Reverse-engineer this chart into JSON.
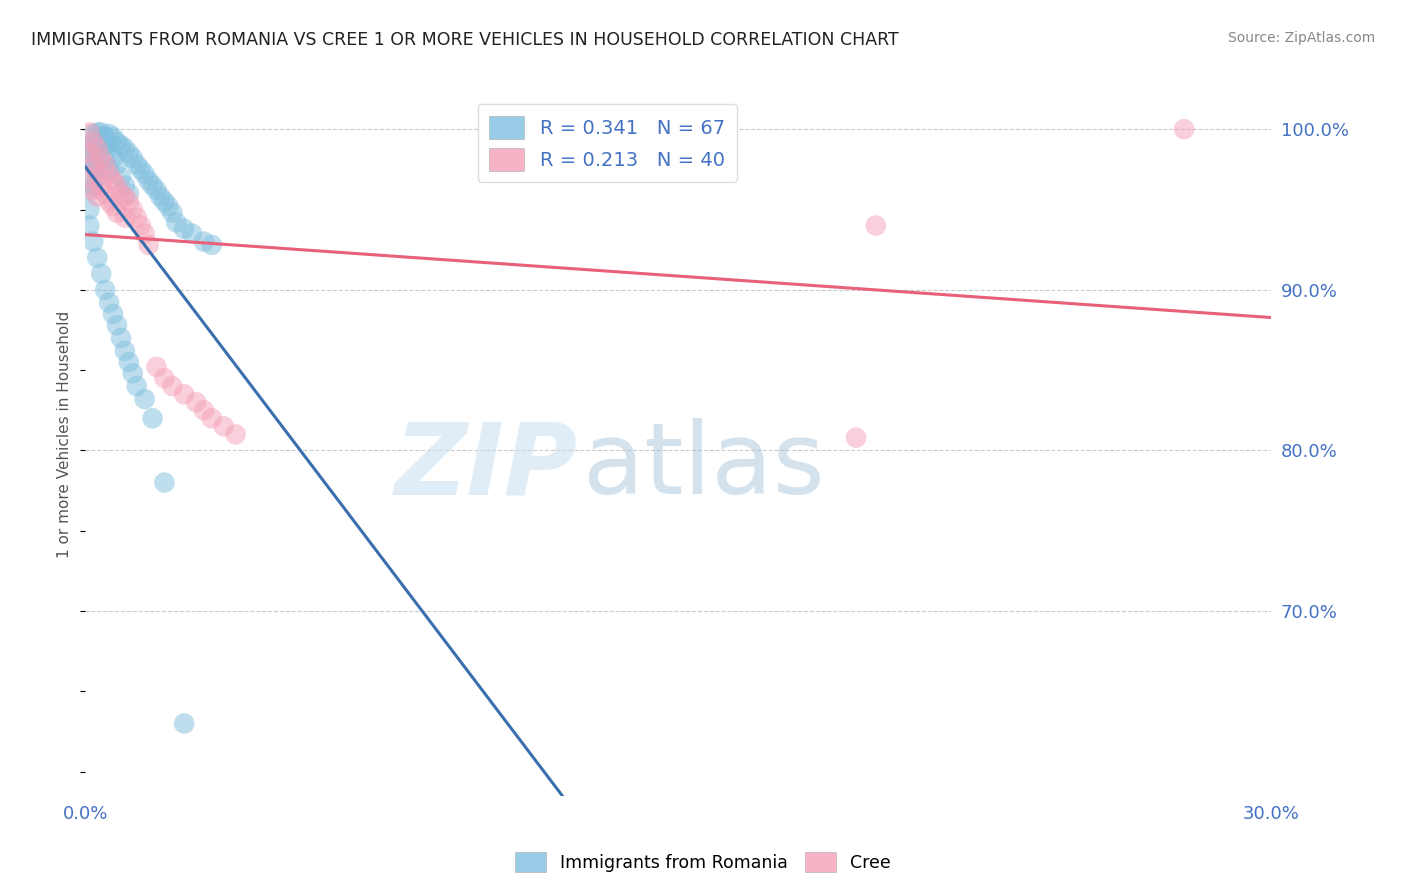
{
  "title": "IMMIGRANTS FROM ROMANIA VS CREE 1 OR MORE VEHICLES IN HOUSEHOLD CORRELATION CHART",
  "source": "Source: ZipAtlas.com",
  "ylabel": "1 or more Vehicles in Household",
  "xmin": 0.0,
  "xmax": 0.3,
  "ymin": 0.585,
  "ymax": 1.035,
  "yticks": [
    0.7,
    0.8,
    0.9,
    1.0
  ],
  "ytick_labels": [
    "70.0%",
    "80.0%",
    "90.0%",
    "100.0%"
  ],
  "blue_R": 0.341,
  "blue_N": 67,
  "pink_R": 0.213,
  "pink_N": 40,
  "blue_color": "#7fbfdf",
  "pink_color": "#f4a0b8",
  "blue_line_color": "#3a6faf",
  "pink_line_color": "#e8607a",
  "legend_blue_label": "Immigrants from Romania",
  "legend_pink_label": "Cree",
  "blue_x": [
    0.001,
    0.001,
    0.001,
    0.001,
    0.001,
    0.002,
    0.002,
    0.002,
    0.002,
    0.002,
    0.003,
    0.003,
    0.003,
    0.003,
    0.004,
    0.004,
    0.004,
    0.004,
    0.005,
    0.005,
    0.005,
    0.006,
    0.006,
    0.006,
    0.007,
    0.007,
    0.008,
    0.008,
    0.009,
    0.009,
    0.01,
    0.01,
    0.011,
    0.011,
    0.012,
    0.013,
    0.014,
    0.015,
    0.016,
    0.017,
    0.018,
    0.019,
    0.02,
    0.021,
    0.022,
    0.023,
    0.025,
    0.027,
    0.03,
    0.032,
    0.001,
    0.002,
    0.003,
    0.004,
    0.005,
    0.006,
    0.007,
    0.008,
    0.009,
    0.01,
    0.011,
    0.012,
    0.013,
    0.015,
    0.017,
    0.02,
    0.025
  ],
  "blue_y": [
    0.99,
    0.98,
    0.975,
    0.962,
    0.95,
    0.997,
    0.99,
    0.985,
    0.978,
    0.965,
    0.998,
    0.992,
    0.985,
    0.975,
    0.998,
    0.994,
    0.988,
    0.972,
    0.996,
    0.99,
    0.982,
    0.997,
    0.99,
    0.975,
    0.995,
    0.982,
    0.992,
    0.978,
    0.99,
    0.97,
    0.988,
    0.965,
    0.985,
    0.96,
    0.982,
    0.978,
    0.975,
    0.972,
    0.968,
    0.965,
    0.962,
    0.958,
    0.955,
    0.952,
    0.948,
    0.942,
    0.938,
    0.935,
    0.93,
    0.928,
    0.94,
    0.93,
    0.92,
    0.91,
    0.9,
    0.892,
    0.885,
    0.878,
    0.87,
    0.862,
    0.855,
    0.848,
    0.84,
    0.832,
    0.82,
    0.78,
    0.63
  ],
  "pink_x": [
    0.001,
    0.001,
    0.001,
    0.002,
    0.002,
    0.002,
    0.003,
    0.003,
    0.003,
    0.004,
    0.004,
    0.005,
    0.005,
    0.006,
    0.006,
    0.007,
    0.007,
    0.008,
    0.008,
    0.009,
    0.01,
    0.01,
    0.011,
    0.012,
    0.013,
    0.014,
    0.015,
    0.016,
    0.018,
    0.02,
    0.022,
    0.025,
    0.028,
    0.03,
    0.032,
    0.035,
    0.038,
    0.195,
    0.2,
    0.278
  ],
  "pink_y": [
    0.998,
    0.985,
    0.97,
    0.992,
    0.978,
    0.962,
    0.988,
    0.972,
    0.958,
    0.982,
    0.965,
    0.978,
    0.96,
    0.972,
    0.955,
    0.968,
    0.952,
    0.965,
    0.948,
    0.96,
    0.958,
    0.945,
    0.955,
    0.95,
    0.945,
    0.94,
    0.935,
    0.928,
    0.852,
    0.845,
    0.84,
    0.835,
    0.83,
    0.825,
    0.82,
    0.815,
    0.81,
    0.808,
    0.94,
    1.0
  ],
  "watermark_zip": "ZIP",
  "watermark_atlas": "atlas",
  "background_color": "#ffffff",
  "grid_color": "#cccccc",
  "tick_label_color": "#4472c4",
  "ylabel_color": "#555555",
  "title_color": "#222222",
  "source_color": "#888888"
}
